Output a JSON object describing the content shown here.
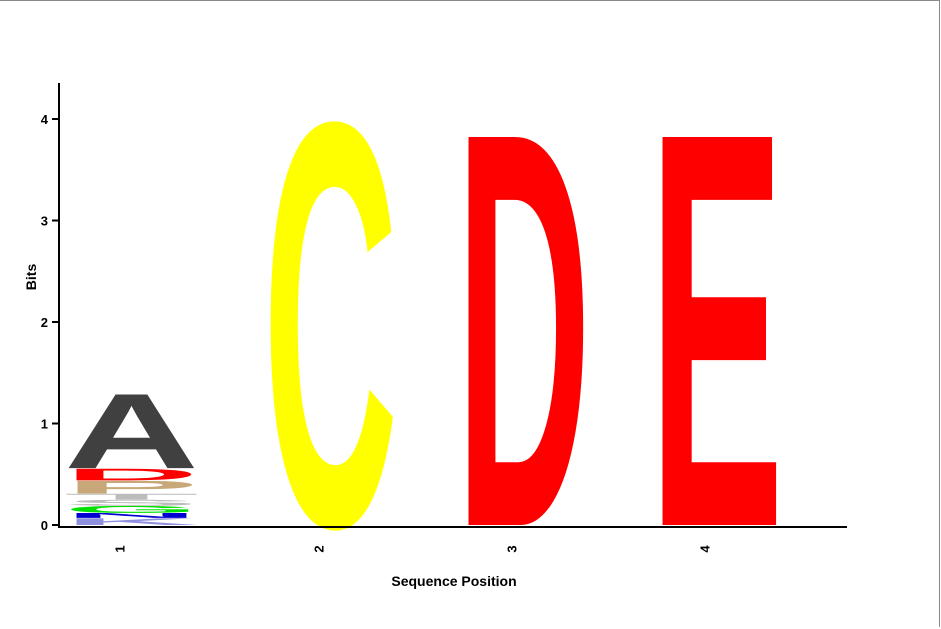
{
  "chart_data": {
    "type": "sequence_logo",
    "title": "",
    "xlabel": "Sequence Position",
    "ylabel": "Bits",
    "ylim": [
      0,
      4.3
    ],
    "yticks": [
      0,
      1,
      2,
      3,
      4
    ],
    "grid": false,
    "positions": [
      {
        "label": "1",
        "stack": [
          {
            "letter": "K",
            "bits": 0.07,
            "color": "#8f8fe0"
          },
          {
            "letter": "N",
            "bits": 0.05,
            "color": "#0000d0"
          },
          {
            "letter": "G",
            "bits": 0.07,
            "color": "#00e000"
          },
          {
            "letter": "S",
            "bits": 0.06,
            "color": "#bcbcbc"
          },
          {
            "letter": "T",
            "bits": 0.06,
            "color": "#bcbcbc"
          },
          {
            "letter": "P",
            "bits": 0.13,
            "color": "#c8a878"
          },
          {
            "letter": "D",
            "bits": 0.12,
            "color": "#ff0000"
          },
          {
            "letter": "A",
            "bits": 0.76,
            "color": "#404040"
          }
        ]
      },
      {
        "label": "2",
        "stack": [
          {
            "letter": "C",
            "bits": 4.1,
            "color": "#ffff00"
          }
        ]
      },
      {
        "label": "3",
        "stack": [
          {
            "letter": "D",
            "bits": 4.0,
            "color": "#ff0000"
          }
        ]
      },
      {
        "label": "4",
        "stack": [
          {
            "letter": "E",
            "bits": 4.0,
            "color": "#ff0000"
          }
        ]
      }
    ]
  }
}
